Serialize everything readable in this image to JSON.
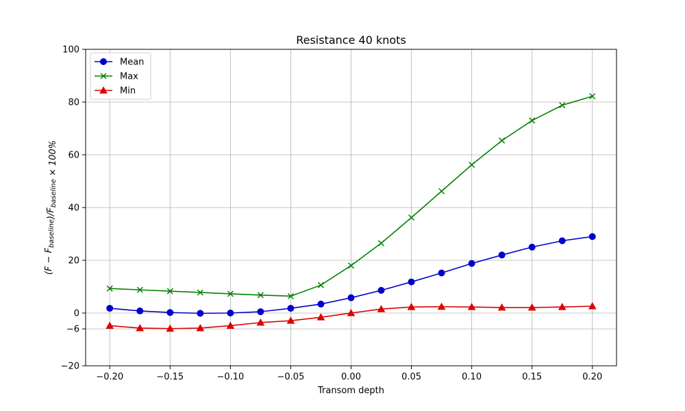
{
  "chart_data": {
    "type": "line",
    "title": "Resistance 40 knots",
    "xlabel": "Transom depth",
    "ylabel": "(F − F_baseline)/F_baseline × 100%",
    "xlim": [
      -0.22,
      0.22
    ],
    "ylim": [
      -20,
      100
    ],
    "grid": true,
    "legend_position": "upper left",
    "x": [
      -0.2,
      -0.175,
      -0.15,
      -0.125,
      -0.1,
      -0.075,
      -0.05,
      -0.025,
      0.0,
      0.025,
      0.05,
      0.075,
      0.1,
      0.125,
      0.15,
      0.175,
      0.2
    ],
    "xticks": [
      -0.2,
      -0.15,
      -0.1,
      -0.05,
      0.0,
      0.05,
      0.1,
      0.15,
      0.2
    ],
    "xtick_labels": [
      "−0.20",
      "−0.15",
      "−0.10",
      "−0.05",
      "0.00",
      "0.05",
      "0.10",
      "0.15",
      "0.20"
    ],
    "yticks": [
      -20,
      -6,
      0,
      20,
      40,
      60,
      80,
      100
    ],
    "ytick_labels": [
      "−20",
      "−6",
      "0",
      "20",
      "40",
      "60",
      "80",
      "100"
    ],
    "series": [
      {
        "name": "Mean",
        "color": "#0000cc",
        "marker": "circle",
        "values": [
          1.8,
          0.8,
          0.2,
          -0.1,
          0.0,
          0.5,
          1.8,
          3.4,
          5.8,
          8.6,
          11.8,
          15.2,
          18.8,
          22.0,
          25.0,
          27.4,
          29.0
        ]
      },
      {
        "name": "Max",
        "color": "#008000",
        "marker": "x",
        "values": [
          9.3,
          8.8,
          8.3,
          7.8,
          7.3,
          6.8,
          6.4,
          10.6,
          18.0,
          26.5,
          36.2,
          46.2,
          56.2,
          65.4,
          73.0,
          78.8,
          82.2
        ]
      },
      {
        "name": "Min",
        "color": "#dd0000",
        "marker": "triangle",
        "values": [
          -4.8,
          -5.7,
          -5.9,
          -5.7,
          -4.8,
          -3.6,
          -2.9,
          -1.6,
          0.0,
          1.5,
          2.3,
          2.4,
          2.3,
          2.1,
          2.1,
          2.3,
          2.6
        ]
      }
    ]
  }
}
